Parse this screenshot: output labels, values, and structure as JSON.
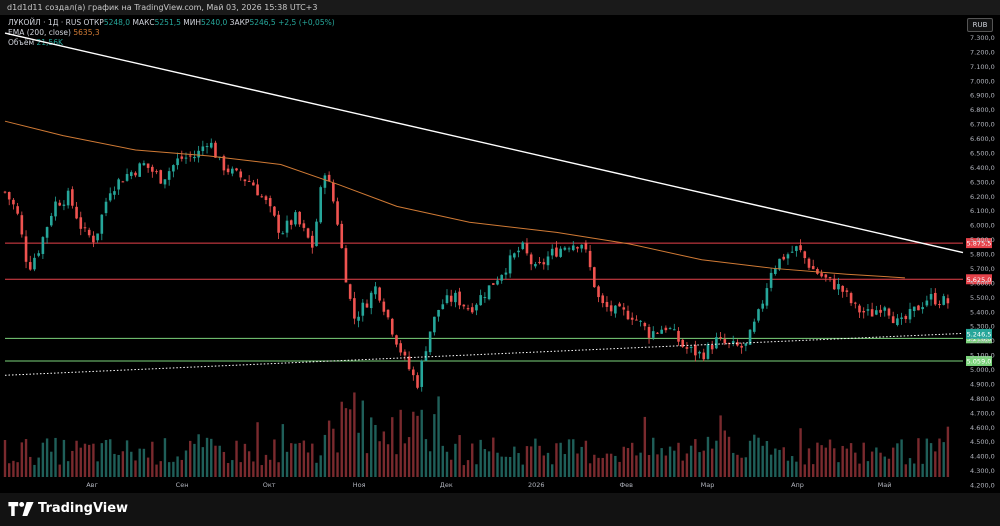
{
  "header": {
    "text": "d1d1d11 создал(а) график на TradingView.com, Май 03, 2026 15:38 UTC+3"
  },
  "legend": {
    "symbol": "ЛУКОЙЛ · 1Д · RUS",
    "open_label": "ОТКР",
    "open_value": "5248,0",
    "high_label": "МАКС",
    "high_value": "5251,5",
    "low_label": "МИН",
    "low_value": "5240,0",
    "close_label": "ЗАКР",
    "close_value": "5246,5",
    "change": "+2,5 (+0,05%)",
    "ema_label": "EMA (200, close)",
    "ema_value": "5635,3",
    "volume_label": "Объём",
    "volume_value": "21,56K"
  },
  "currency_button": "RUB",
  "brand": "TradingView",
  "colors": {
    "up": "#26a69a",
    "down": "#ef5350",
    "ema": "#d07a35",
    "resistance": "#e5424a",
    "support": "#7bd37b",
    "trend": "#ffffff"
  },
  "chart_data": {
    "type": "candlestick",
    "y_range": [
      4200,
      7400
    ],
    "y_ticks": [
      "7.300,0",
      "7.200,0",
      "7.100,0",
      "7.000,0",
      "6.900,0",
      "6.800,0",
      "6.700,0",
      "6.600,0",
      "6.500,0",
      "6.400,0",
      "6.300,0",
      "6.200,0",
      "6.100,0",
      "6.000,0",
      "5.900,0",
      "5.800,0",
      "5.700,0",
      "5.600,0",
      "5.500,0",
      "5.400,0",
      "5.300,0",
      "5.200,0",
      "5.100,0",
      "5.000,0",
      "4.900,0",
      "4.800,0",
      "4.700,0",
      "4.600,0",
      "4.500,0",
      "4.400,0",
      "4.300,0",
      "4.200,0"
    ],
    "x_labels": [
      {
        "label": "Авг",
        "day": 30
      },
      {
        "label": "Сен",
        "day": 61
      },
      {
        "label": "Окт",
        "day": 91
      },
      {
        "label": "Ноя",
        "day": 122
      },
      {
        "label": "Дек",
        "day": 152
      },
      {
        "label": "2026",
        "day": 183
      },
      {
        "label": "Фев",
        "day": 214
      },
      {
        "label": "Мар",
        "day": 242
      },
      {
        "label": "Апр",
        "day": 273
      },
      {
        "label": "Май",
        "day": 303
      }
    ],
    "x_range": [
      0,
      330
    ],
    "resistance_levels": [
      {
        "value": 5875.5,
        "label": "5.875,5"
      },
      {
        "value": 5625.0,
        "label": "5.625,0"
      }
    ],
    "support_levels": [
      {
        "value": 5216.0,
        "label": "5.216,0"
      },
      {
        "value": 5059.0,
        "label": "5.059,0"
      }
    ],
    "last_price": {
      "value": 5246.5,
      "label": "5.246,5"
    },
    "trendline": [
      {
        "day": 0,
        "value": 7330
      },
      {
        "day": 330,
        "value": 5810
      }
    ],
    "dotted_trend": [
      {
        "day": 0,
        "value": 4960
      },
      {
        "day": 330,
        "value": 5250
      }
    ],
    "ema_curve": [
      {
        "day": 0,
        "value": 6720
      },
      {
        "day": 20,
        "value": 6620
      },
      {
        "day": 45,
        "value": 6520
      },
      {
        "day": 70,
        "value": 6480
      },
      {
        "day": 95,
        "value": 6420
      },
      {
        "day": 115,
        "value": 6280
      },
      {
        "day": 135,
        "value": 6130
      },
      {
        "day": 160,
        "value": 6020
      },
      {
        "day": 190,
        "value": 5950
      },
      {
        "day": 215,
        "value": 5870
      },
      {
        "day": 240,
        "value": 5760
      },
      {
        "day": 265,
        "value": 5700
      },
      {
        "day": 290,
        "value": 5660
      },
      {
        "day": 310,
        "value": 5635
      }
    ],
    "price_path": [
      {
        "day": 0,
        "value": 6230
      },
      {
        "day": 4,
        "value": 6100
      },
      {
        "day": 8,
        "value": 5700
      },
      {
        "day": 12,
        "value": 5850
      },
      {
        "day": 17,
        "value": 6150
      },
      {
        "day": 22,
        "value": 6200
      },
      {
        "day": 27,
        "value": 5950
      },
      {
        "day": 31,
        "value": 5900
      },
      {
        "day": 36,
        "value": 6250
      },
      {
        "day": 42,
        "value": 6350
      },
      {
        "day": 48,
        "value": 6420
      },
      {
        "day": 54,
        "value": 6320
      },
      {
        "day": 60,
        "value": 6460
      },
      {
        "day": 66,
        "value": 6480
      },
      {
        "day": 70,
        "value": 6600
      },
      {
        "day": 74,
        "value": 6430
      },
      {
        "day": 79,
        "value": 6350
      },
      {
        "day": 85,
        "value": 6300
      },
      {
        "day": 90,
        "value": 6150
      },
      {
        "day": 95,
        "value": 5950
      },
      {
        "day": 100,
        "value": 6050
      },
      {
        "day": 106,
        "value": 5850
      },
      {
        "day": 110,
        "value": 6400
      },
      {
        "day": 114,
        "value": 6100
      },
      {
        "day": 117,
        "value": 5700
      },
      {
        "day": 120,
        "value": 5350
      },
      {
        "day": 124,
        "value": 5450
      },
      {
        "day": 128,
        "value": 5580
      },
      {
        "day": 133,
        "value": 5300
      },
      {
        "day": 138,
        "value": 5050
      },
      {
        "day": 142,
        "value": 4900
      },
      {
        "day": 146,
        "value": 5250
      },
      {
        "day": 150,
        "value": 5450
      },
      {
        "day": 155,
        "value": 5500
      },
      {
        "day": 160,
        "value": 5420
      },
      {
        "day": 166,
        "value": 5550
      },
      {
        "day": 172,
        "value": 5700
      },
      {
        "day": 178,
        "value": 5850
      },
      {
        "day": 183,
        "value": 5680
      },
      {
        "day": 188,
        "value": 5800
      },
      {
        "day": 194,
        "value": 5870
      },
      {
        "day": 199,
        "value": 5880
      },
      {
        "day": 205,
        "value": 5450
      },
      {
        "day": 210,
        "value": 5400
      },
      {
        "day": 216,
        "value": 5380
      },
      {
        "day": 222,
        "value": 5250
      },
      {
        "day": 228,
        "value": 5300
      },
      {
        "day": 234,
        "value": 5150
      },
      {
        "day": 240,
        "value": 5100
      },
      {
        "day": 245,
        "value": 5200
      },
      {
        "day": 250,
        "value": 5160
      },
      {
        "day": 255,
        "value": 5150
      },
      {
        "day": 260,
        "value": 5400
      },
      {
        "day": 264,
        "value": 5700
      },
      {
        "day": 268,
        "value": 5780
      },
      {
        "day": 273,
        "value": 5840
      },
      {
        "day": 278,
        "value": 5700
      },
      {
        "day": 283,
        "value": 5620
      },
      {
        "day": 288,
        "value": 5560
      },
      {
        "day": 293,
        "value": 5420
      },
      {
        "day": 298,
        "value": 5380
      },
      {
        "day": 303,
        "value": 5460
      },
      {
        "day": 308,
        "value": 5300
      },
      {
        "day": 313,
        "value": 5400
      },
      {
        "day": 318,
        "value": 5500
      },
      {
        "day": 322,
        "value": 5480
      },
      {
        "day": 326,
        "value": 5460
      }
    ],
    "volume_scale_max": 120
  }
}
